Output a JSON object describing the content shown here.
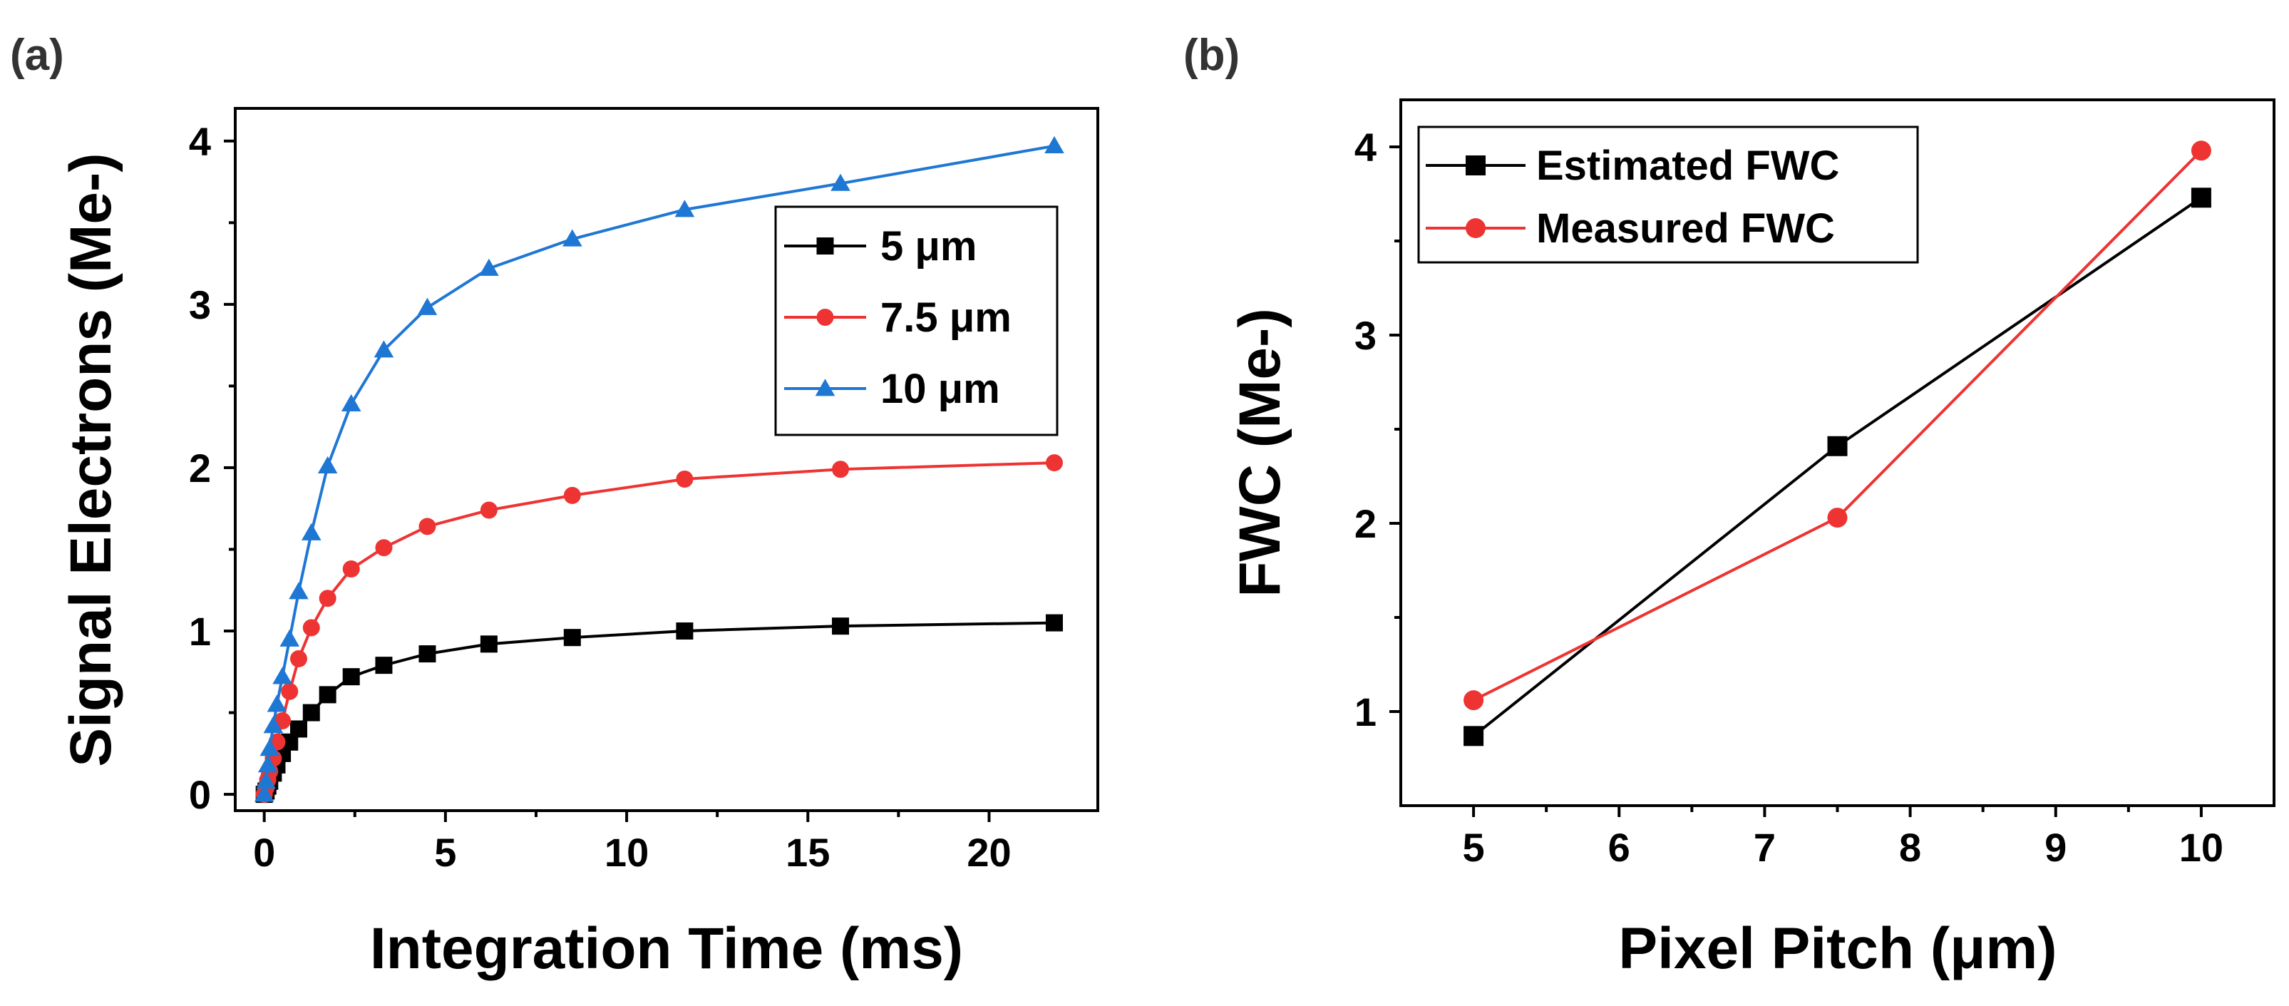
{
  "chart_data": [
    {
      "panel_label": "(a)",
      "type": "line",
      "xlabel": "Integration Time (ms)",
      "ylabel": "Signal Electrons (Me-)",
      "xlim": [
        -0.8,
        23
      ],
      "ylim": [
        -0.1,
        4.2
      ],
      "xticks": [
        0,
        5,
        10,
        15,
        20
      ],
      "yticks": [
        0,
        1,
        2,
        3,
        4
      ],
      "legend_position": "right-middle",
      "series": [
        {
          "name": "5 μm",
          "color": "#000000",
          "marker": "square",
          "x": [
            0,
            0.05,
            0.1,
            0.15,
            0.25,
            0.35,
            0.5,
            0.7,
            0.95,
            1.3,
            1.75,
            2.4,
            3.3,
            4.5,
            6.2,
            8.5,
            11.6,
            15.9,
            21.8
          ],
          "y": [
            0,
            0.02,
            0.05,
            0.08,
            0.13,
            0.18,
            0.25,
            0.32,
            0.4,
            0.5,
            0.61,
            0.72,
            0.79,
            0.86,
            0.92,
            0.96,
            1.0,
            1.03,
            1.05
          ]
        },
        {
          "name": "7.5 μm",
          "color": "#ee3333",
          "marker": "circle",
          "x": [
            0,
            0.05,
            0.1,
            0.15,
            0.25,
            0.35,
            0.5,
            0.7,
            0.95,
            1.3,
            1.75,
            2.4,
            3.3,
            4.5,
            6.2,
            8.5,
            11.6,
            15.9,
            21.8
          ],
          "y": [
            0,
            0.04,
            0.09,
            0.14,
            0.22,
            0.32,
            0.45,
            0.63,
            0.83,
            1.02,
            1.2,
            1.38,
            1.51,
            1.64,
            1.74,
            1.83,
            1.93,
            1.99,
            2.03
          ]
        },
        {
          "name": "10 μm",
          "color": "#1f77d4",
          "marker": "triangle",
          "x": [
            0,
            0.05,
            0.1,
            0.15,
            0.25,
            0.35,
            0.5,
            0.7,
            0.95,
            1.3,
            1.75,
            2.4,
            3.3,
            4.5,
            6.2,
            8.5,
            11.6,
            15.9,
            21.8
          ],
          "y": [
            0,
            0.08,
            0.18,
            0.28,
            0.42,
            0.55,
            0.72,
            0.95,
            1.24,
            1.6,
            2.01,
            2.39,
            2.72,
            2.98,
            3.22,
            3.4,
            3.58,
            3.74,
            3.97
          ]
        }
      ]
    },
    {
      "panel_label": "(b)",
      "type": "line",
      "xlabel": "Pixel Pitch (μm)",
      "ylabel": "FWC (Me-)",
      "xlim": [
        4.5,
        10.5
      ],
      "ylim": [
        0.5,
        4.25
      ],
      "xticks": [
        5,
        6,
        7,
        8,
        9,
        10
      ],
      "yticks": [
        1,
        2,
        3,
        4
      ],
      "legend_position": "top-left",
      "series": [
        {
          "name": "Estimated FWC",
          "color": "#000000",
          "marker": "square",
          "x": [
            5,
            7.5,
            10
          ],
          "y": [
            0.87,
            2.41,
            3.73
          ]
        },
        {
          "name": "Measured FWC",
          "color": "#ee3333",
          "marker": "circle",
          "x": [
            5,
            7.5,
            10
          ],
          "y": [
            1.06,
            2.03,
            3.98
          ]
        }
      ]
    }
  ]
}
